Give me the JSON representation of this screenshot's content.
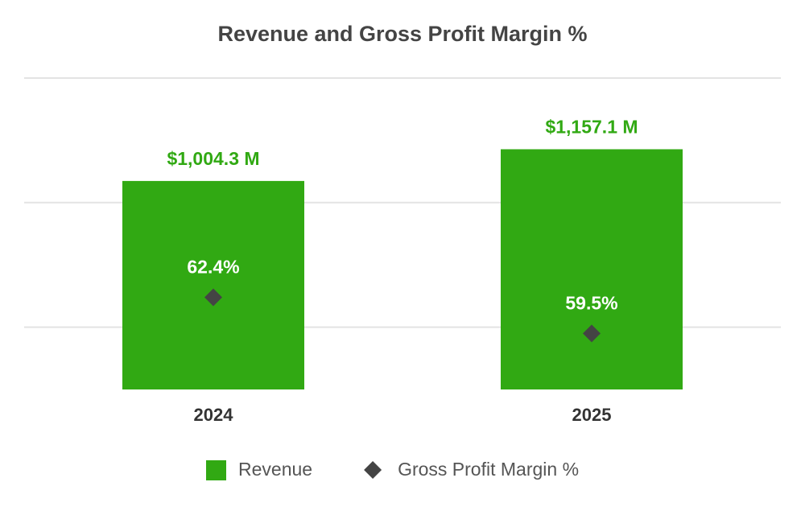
{
  "chart_data": {
    "type": "bar_line",
    "title": "Revenue and Gross Profit Margin %",
    "categories": [
      "2024",
      "2025"
    ],
    "series": [
      {
        "name": "Revenue",
        "color": "#31a913",
        "values": [
          1004.3,
          1157.1
        ],
        "value_labels": [
          "$1,004.3 M",
          "$1,157.1 M"
        ]
      },
      {
        "name": "Gross Profit Margin %",
        "color": "#444444",
        "axis": "y2",
        "values": [
          62.4,
          59.5
        ],
        "value_labels": [
          "62.4%",
          "59.5%"
        ]
      }
    ],
    "ylim": [
      0,
      1500
    ],
    "y2lim": [
      55,
      80
    ],
    "y2ticks": [
      60,
      70,
      80
    ],
    "grid": true
  }
}
